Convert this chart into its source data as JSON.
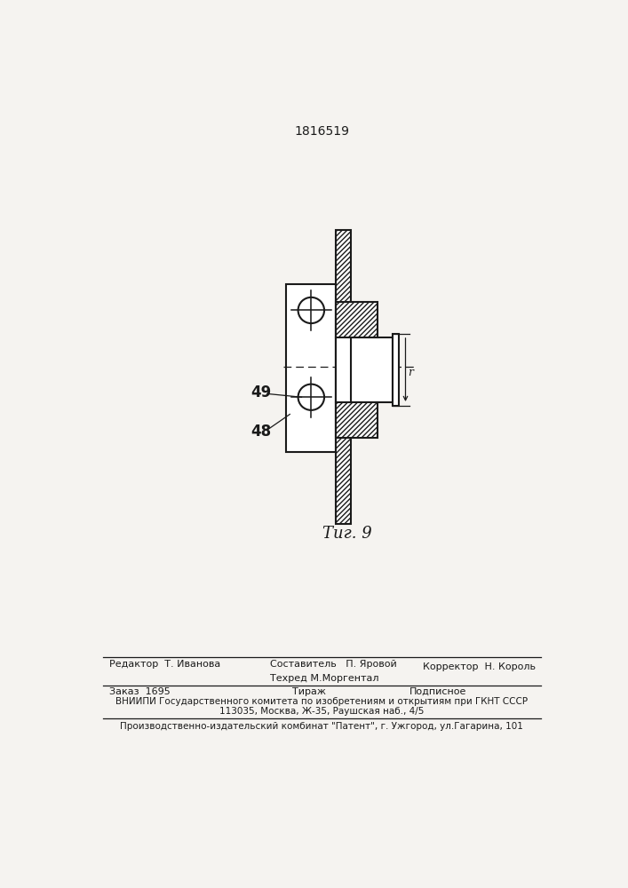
{
  "patent_number": "1816519",
  "fig_label": "Τиг. 9",
  "label_48": "48",
  "label_49": "49",
  "label_r": "r",
  "bg_color": "#f5f3f0",
  "line_color": "#1a1a1a",
  "footer_line1_left": "Редактор  Т. Иванова",
  "footer_line1_mid": "Составитель   П. Яровой",
  "footer_line2_mid": "Техред М.Моргентал",
  "footer_line2_right": "Корректор  Н. Король",
  "footer_line3_left": "Заказ  1695",
  "footer_line3_mid": "Тираж",
  "footer_line3_right": "Подписное",
  "footer_line4": "ВНИИПИ Государственного комитета по изобретениям и открытиям при ГКНТ СССР",
  "footer_line5": "113035, Москва, Ж-35, Раушская наб., 4/5",
  "footer_line6": "Производственно-издательский комбинат \"Патент\", г. Ужгород, ул.Гагарина, 101"
}
